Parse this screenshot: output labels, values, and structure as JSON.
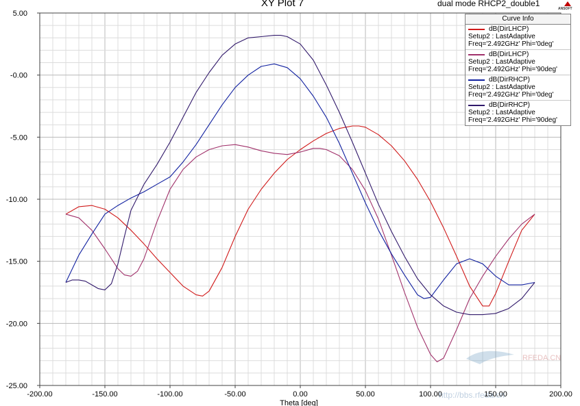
{
  "title": "XY Plot 7",
  "subtitle": "dual mode RHCP2_double1",
  "logo_text": "ANSOFT",
  "watermark": [
    "RFEDA.CN",
    "http://bbs.rfeda.cn"
  ],
  "legend": {
    "header": "Curve Info",
    "entries": [
      {
        "line1": "dB(DirLHCP)",
        "line2": "Setup2 : LastAdaptive",
        "line3": "Freq='2.492GHz' Phi='0deg'",
        "color": "#d01818"
      },
      {
        "line1": "dB(DirLHCP)",
        "line2": "Setup2 : LastAdaptive",
        "line3": "Freq='2.492GHz' Phi='90deg'",
        "color": "#a0306a"
      },
      {
        "line1": "dB(DirRHCP)",
        "line2": "Setup2 : LastAdaptive",
        "line3": "Freq='2.492GHz' Phi='0deg'",
        "color": "#1020a0"
      },
      {
        "line1": "dB(DirRHCP)",
        "line2": "Setup2 : LastAdaptive",
        "line3": "Freq='2.492GHz' Phi='90deg'",
        "color": "#30186a"
      }
    ]
  },
  "chart_data": {
    "type": "line",
    "title": "XY Plot 7",
    "xlabel": "Theta [deg]",
    "ylabel": "",
    "xlim": [
      -200,
      200
    ],
    "ylim": [
      -25,
      5
    ],
    "grid": true,
    "legend_position": "top-right",
    "x_ticks": [
      "-200.00",
      "-150.00",
      "-100.00",
      "-50.00",
      "0.00",
      "50.00",
      "100.00",
      "150.00",
      "200.00"
    ],
    "y_ticks": [
      "5.00",
      "-0.00",
      "-5.00",
      "-10.00",
      "-15.00",
      "-20.00",
      "-25.00"
    ],
    "series": [
      {
        "name": "dB(DirLHCP) Setup2 : LastAdaptive Freq='2.492GHz' Phi='0deg'",
        "color": "#d01818",
        "x": [
          -180,
          -170,
          -160,
          -150,
          -140,
          -130,
          -120,
          -110,
          -100,
          -90,
          -80,
          -75,
          -70,
          -60,
          -50,
          -40,
          -30,
          -20,
          -10,
          0,
          10,
          20,
          30,
          40,
          45,
          50,
          60,
          70,
          80,
          90,
          100,
          110,
          120,
          130,
          140,
          145,
          150,
          160,
          170,
          180
        ],
        "y": [
          -11.2,
          -10.6,
          -10.5,
          -10.8,
          -11.5,
          -12.5,
          -13.6,
          -14.8,
          -15.9,
          -17.0,
          -17.7,
          -17.8,
          -17.4,
          -15.5,
          -13.0,
          -10.8,
          -9.2,
          -7.9,
          -6.8,
          -6.0,
          -5.3,
          -4.7,
          -4.3,
          -4.1,
          -4.1,
          -4.2,
          -4.8,
          -5.7,
          -6.9,
          -8.4,
          -10.2,
          -12.3,
          -14.6,
          -17.0,
          -18.6,
          -18.6,
          -17.6,
          -15.0,
          -12.5,
          -11.2
        ]
      },
      {
        "name": "dB(DirLHCP) Setup2 : LastAdaptive Freq='2.492GHz' Phi='90deg'",
        "color": "#a0306a",
        "x": [
          -180,
          -170,
          -160,
          -150,
          -145,
          -140,
          -135,
          -130,
          -125,
          -120,
          -110,
          -100,
          -90,
          -80,
          -70,
          -60,
          -50,
          -40,
          -30,
          -20,
          -10,
          0,
          10,
          15,
          20,
          30,
          40,
          50,
          60,
          70,
          80,
          90,
          100,
          105,
          110,
          120,
          130,
          140,
          150,
          160,
          170,
          180
        ],
        "y": [
          -11.2,
          -11.5,
          -12.5,
          -14.0,
          -14.8,
          -15.6,
          -16.1,
          -16.2,
          -15.8,
          -14.8,
          -11.8,
          -9.2,
          -7.6,
          -6.6,
          -6.0,
          -5.7,
          -5.6,
          -5.8,
          -6.1,
          -6.3,
          -6.4,
          -6.2,
          -5.9,
          -5.9,
          -6.0,
          -6.5,
          -7.6,
          -9.3,
          -11.6,
          -14.5,
          -17.5,
          -20.3,
          -22.5,
          -23.1,
          -22.8,
          -20.5,
          -18.0,
          -16.2,
          -14.6,
          -13.2,
          -12.0,
          -11.2
        ]
      },
      {
        "name": "dB(DirRHCP) Setup2 : LastAdaptive Freq='2.492GHz' Phi='0deg'",
        "color": "#1020a0",
        "x": [
          -180,
          -170,
          -160,
          -150,
          -140,
          -130,
          -120,
          -110,
          -100,
          -90,
          -80,
          -70,
          -60,
          -50,
          -40,
          -30,
          -20,
          -10,
          0,
          10,
          20,
          30,
          40,
          50,
          60,
          70,
          80,
          90,
          95,
          100,
          110,
          120,
          130,
          140,
          150,
          160,
          170,
          180
        ],
        "y": [
          -16.7,
          -14.5,
          -12.8,
          -11.2,
          -10.5,
          -9.9,
          -9.4,
          -8.8,
          -8.2,
          -7.0,
          -5.6,
          -4.0,
          -2.4,
          -1.0,
          0.0,
          0.7,
          0.9,
          0.6,
          -0.3,
          -1.7,
          -3.4,
          -5.5,
          -7.9,
          -10.3,
          -12.5,
          -14.4,
          -16.1,
          -17.7,
          -18.0,
          -17.9,
          -16.5,
          -15.2,
          -14.8,
          -15.2,
          -16.2,
          -16.9,
          -16.9,
          -16.7
        ]
      },
      {
        "name": "dB(DirRHCP) Setup2 : LastAdaptive Freq='2.492GHz' Phi='90deg'",
        "color": "#30186a",
        "x": [
          -180,
          -175,
          -170,
          -165,
          -160,
          -155,
          -150,
          -145,
          -140,
          -135,
          -130,
          -120,
          -110,
          -100,
          -90,
          -80,
          -70,
          -60,
          -50,
          -40,
          -30,
          -20,
          -15,
          -10,
          0,
          10,
          20,
          30,
          40,
          50,
          60,
          70,
          80,
          90,
          100,
          110,
          120,
          130,
          140,
          150,
          160,
          170,
          180
        ],
        "y": [
          -16.7,
          -16.5,
          -16.5,
          -16.6,
          -16.9,
          -17.2,
          -17.3,
          -16.8,
          -15.2,
          -13.0,
          -10.9,
          -8.8,
          -7.2,
          -5.4,
          -3.4,
          -1.4,
          0.2,
          1.6,
          2.5,
          3.0,
          3.1,
          3.2,
          3.2,
          3.1,
          2.5,
          1.2,
          -0.8,
          -3.0,
          -5.4,
          -7.9,
          -10.4,
          -12.6,
          -14.6,
          -16.4,
          -17.7,
          -18.6,
          -19.1,
          -19.3,
          -19.3,
          -19.2,
          -18.8,
          -18.0,
          -16.7
        ]
      }
    ]
  }
}
